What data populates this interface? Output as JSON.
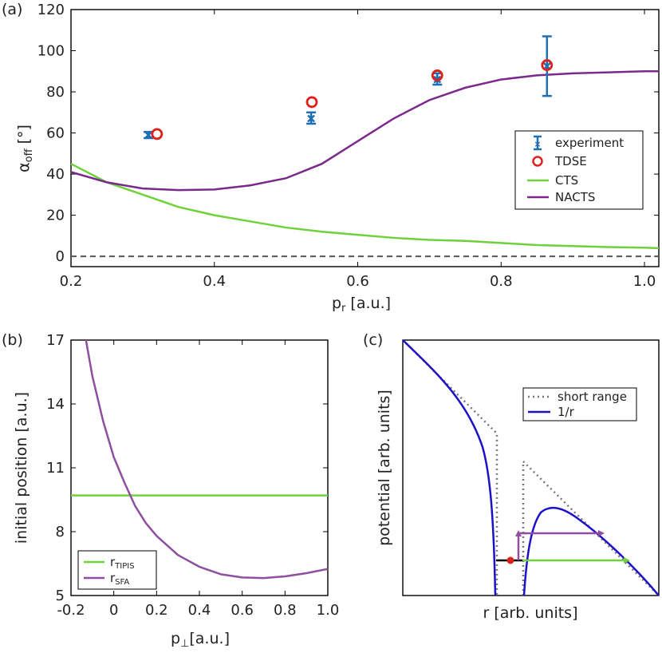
{
  "chart_data": [
    {
      "panel_label": "(a)",
      "type": "line",
      "xlabel_main": "p",
      "xlabel_sub": "r",
      "xlabel_unit": " [a.u.]",
      "ylabel_main": "α",
      "ylabel_sub": "off",
      "ylabel_unit": " [°]",
      "xlim": [
        0.2,
        1.02
      ],
      "ylim": [
        -5,
        120
      ],
      "xticks": [
        "0.2",
        "0.4",
        "0.6",
        "0.8",
        "1.0"
      ],
      "xtick_values": [
        0.2,
        0.4,
        0.6,
        0.8,
        1.0
      ],
      "yticks": [
        "0",
        "20",
        "40",
        "60",
        "80",
        "100",
        "120"
      ],
      "ytick_values": [
        0,
        20,
        40,
        60,
        80,
        100,
        120
      ],
      "legend_position": "center-right",
      "series": [
        {
          "name": "experiment",
          "kind": "errorbar",
          "color": "#1f6fb5",
          "x": [
            0.308,
            0.535,
            0.711,
            0.864
          ],
          "y": [
            59,
            67,
            86,
            92.5
          ],
          "yerr_low": [
            57.5,
            64.5,
            83.5,
            78
          ],
          "yerr_high": [
            60.5,
            70,
            89,
            107
          ]
        },
        {
          "name": "TDSE",
          "kind": "marker",
          "color": "#e0201c",
          "x": [
            0.32,
            0.536,
            0.711,
            0.864
          ],
          "y": [
            59.5,
            75,
            88,
            93
          ]
        },
        {
          "name": "CTS",
          "kind": "line",
          "color": "#6fd23a",
          "x": [
            0.2,
            0.25,
            0.3,
            0.35,
            0.4,
            0.45,
            0.5,
            0.55,
            0.6,
            0.65,
            0.7,
            0.75,
            0.8,
            0.85,
            0.9,
            0.95,
            1.0,
            1.02
          ],
          "y": [
            45,
            36,
            30,
            24,
            20,
            17,
            14,
            12,
            10.5,
            9,
            8,
            7.5,
            6.5,
            5.5,
            5,
            4.5,
            4.2,
            4
          ]
        },
        {
          "name": "NACTS",
          "kind": "line",
          "color": "#7b2a8c",
          "x": [
            0.2,
            0.25,
            0.3,
            0.35,
            0.4,
            0.45,
            0.5,
            0.55,
            0.6,
            0.65,
            0.7,
            0.75,
            0.8,
            0.85,
            0.9,
            0.95,
            1.0,
            1.02
          ],
          "y": [
            41,
            36,
            33,
            32.2,
            32.5,
            34.5,
            38,
            45,
            56,
            67,
            76,
            82,
            86,
            88,
            89,
            89.5,
            90,
            90
          ]
        }
      ],
      "reference_line": {
        "y": 0,
        "style": "dashed",
        "color": "#555555"
      }
    },
    {
      "panel_label": "(b)",
      "type": "line",
      "xlabel_main": "p",
      "xlabel_sub": "⊥",
      "xlabel_unit": "[a.u.]",
      "ylabel": "initial position [a.u.]",
      "xlim": [
        -0.2,
        1.0
      ],
      "ylim": [
        5,
        17
      ],
      "xticks": [
        "-0.2",
        "0",
        "0.2",
        "0.4",
        "0.6",
        "0.8",
        "1.0"
      ],
      "xtick_values": [
        -0.2,
        0,
        0.2,
        0.4,
        0.6,
        0.8,
        1.0
      ],
      "yticks": [
        "5",
        "8",
        "11",
        "14",
        "17"
      ],
      "ytick_values": [
        5,
        8,
        11,
        14,
        17
      ],
      "legend_position": "bottom-left",
      "series": [
        {
          "name_main": "r",
          "name_sub": "TIPIS",
          "color": "#6fd23a",
          "x": [
            -0.2,
            1.0
          ],
          "y": [
            9.7,
            9.7
          ]
        },
        {
          "name_main": "r",
          "name_sub": "SFA",
          "color": "#8e4fa0",
          "x": [
            -0.13,
            -0.1,
            -0.05,
            0.0,
            0.05,
            0.1,
            0.15,
            0.2,
            0.3,
            0.4,
            0.5,
            0.6,
            0.7,
            0.8,
            0.9,
            1.0
          ],
          "y": [
            17,
            15.3,
            13.2,
            11.5,
            10.3,
            9.2,
            8.4,
            7.8,
            6.9,
            6.35,
            6.0,
            5.85,
            5.82,
            5.9,
            6.05,
            6.25
          ]
        }
      ]
    },
    {
      "panel_label": "(c)",
      "type": "line",
      "xlabel": "r [arb. units]",
      "ylabel": "potential [arb. units]",
      "legend_position": "top-right",
      "series": [
        {
          "name": "short range",
          "color": "#777777",
          "style": "dotted"
        },
        {
          "name": "1/r",
          "color": "#1d12c8",
          "style": "solid"
        }
      ]
    }
  ]
}
